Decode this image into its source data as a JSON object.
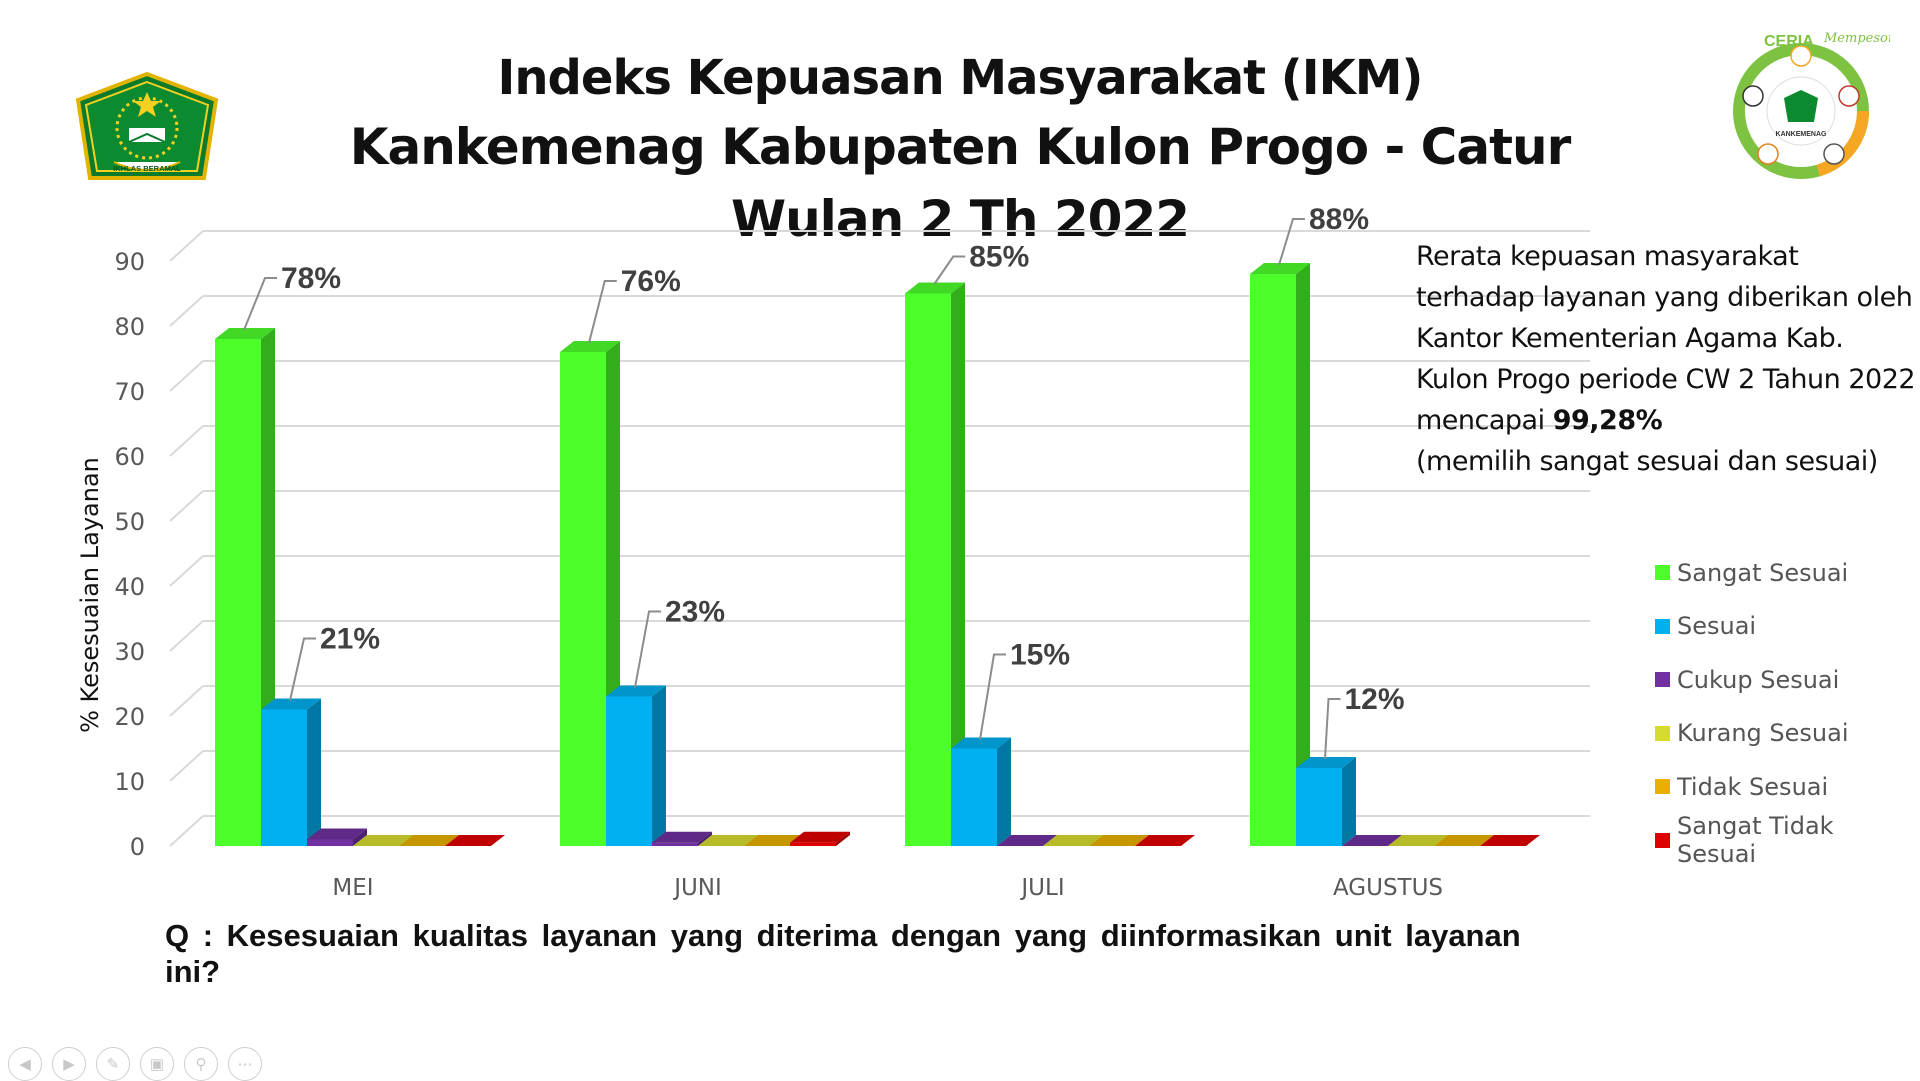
{
  "title": {
    "line1": "Indeks Kepuasan Masyarakat (IKM)",
    "line2": "Kankemenag Kabupaten Kulon Progo - Catur Wulan 2 Th 2022"
  },
  "logos": {
    "left_text": "IKHLAS BERAMAL",
    "right_text": "CERIA",
    "right_script": "Mempesona",
    "right_center": "KANKEMENAG"
  },
  "note": {
    "text": "Rerata kepuasan masyarakat terhadap layanan yang diberikan oleh Kantor Kementerian Agama Kab. Kulon Progo periode CW 2 Tahun 2022 mencapai",
    "highlight": "99,28%",
    "tail": "(memilih sangat sesuai dan sesuai)"
  },
  "question": "Q : Kesesuaian kualitas layanan yang diterima dengan yang diinformasikan unit layanan ini?",
  "chart_data": {
    "type": "bar",
    "categories": [
      "MEI",
      "JUNI",
      "JULI",
      "AGUSTUS"
    ],
    "ylabel": "% Kesesuaian Layanan",
    "xlabel": "",
    "ylim": [
      0,
      90
    ],
    "yticks": [
      0,
      10,
      20,
      30,
      40,
      50,
      60,
      70,
      80,
      90
    ],
    "grid": true,
    "legend_position": "right",
    "series": [
      {
        "name": "Sangat Sesuai",
        "color": "#4CFF2B",
        "values": [
          78,
          76,
          85,
          88
        ],
        "labels": [
          "78%",
          "76%",
          "85%",
          "88%"
        ]
      },
      {
        "name": "Sesuai",
        "color": "#00B0F0",
        "values": [
          21,
          23,
          15,
          12
        ],
        "labels": [
          "21%",
          "23%",
          "15%",
          "12%"
        ]
      },
      {
        "name": "Cukup Sesuai",
        "color": "#7030A0",
        "values": [
          1,
          0.5,
          0,
          0
        ]
      },
      {
        "name": "Kurang Sesuai",
        "color": "#D6DC2E",
        "values": [
          0,
          0,
          0,
          0
        ]
      },
      {
        "name": "Tidak Sesuai",
        "color": "#E8B000",
        "values": [
          0,
          0,
          0,
          0
        ]
      },
      {
        "name": "Sangat Tidak Sesuai",
        "color": "#E00000",
        "values": [
          0,
          0.5,
          0,
          0
        ]
      }
    ]
  },
  "navigation": {
    "icons": [
      "previous-icon",
      "next-icon",
      "pen-icon",
      "slides-icon",
      "zoom-icon",
      "more-icon"
    ]
  }
}
